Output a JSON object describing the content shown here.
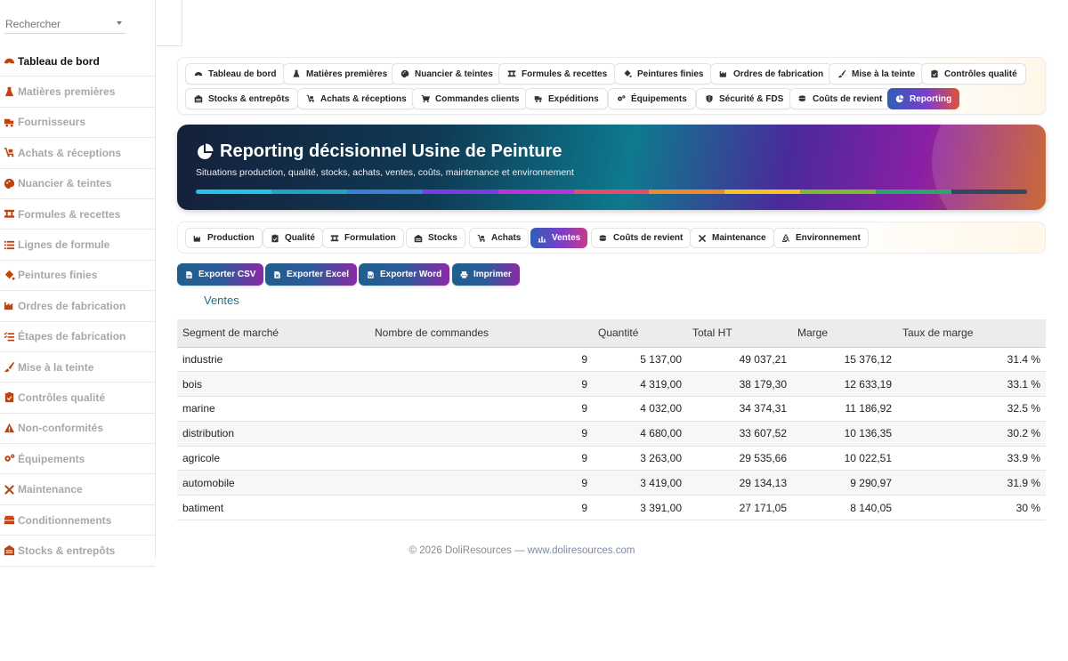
{
  "search": {
    "placeholder": "Rechercher"
  },
  "sidebar": {
    "items": [
      {
        "label": "Tableau de bord",
        "icon": "gauge-icon",
        "active": true
      },
      {
        "label": "Matières premières",
        "icon": "flask-icon"
      },
      {
        "label": "Fournisseurs",
        "icon": "truck-icon"
      },
      {
        "label": "Achats & réceptions",
        "icon": "cart-flatbed-icon"
      },
      {
        "label": "Nuancier & teintes",
        "icon": "palette-icon"
      },
      {
        "label": "Formules & recettes",
        "icon": "ruler-icon"
      },
      {
        "label": "Lignes de formule",
        "icon": "list-icon"
      },
      {
        "label": "Peintures finies",
        "icon": "paint-bucket-icon"
      },
      {
        "label": "Ordres de fabrication",
        "icon": "industry-icon"
      },
      {
        "label": "Étapes de fabrication",
        "icon": "list-check-icon"
      },
      {
        "label": "Mise à la teinte",
        "icon": "brush-icon"
      },
      {
        "label": "Contrôles qualité",
        "icon": "clipboard-check-icon"
      },
      {
        "label": "Non-conformités",
        "icon": "warning-icon"
      },
      {
        "label": "Équipements",
        "icon": "gears-icon"
      },
      {
        "label": "Maintenance",
        "icon": "tools-icon"
      },
      {
        "label": "Conditionnements",
        "icon": "box-icon"
      },
      {
        "label": "Stocks & entrepôts",
        "icon": "warehouse-icon"
      }
    ]
  },
  "nav": {
    "buttons": [
      {
        "label": "Tableau de bord",
        "icon": "gauge-icon"
      },
      {
        "label": "Matières premières",
        "icon": "flask-icon"
      },
      {
        "label": "Nuancier & teintes",
        "icon": "palette-icon"
      },
      {
        "label": "Formules & recettes",
        "icon": "ruler-icon"
      },
      {
        "label": "Peintures finies",
        "icon": "paint-bucket-icon"
      },
      {
        "label": "Ordres de fabrication",
        "icon": "industry-icon"
      },
      {
        "label": "Mise à la teinte",
        "icon": "brush-icon"
      },
      {
        "label": "Contrôles qualité",
        "icon": "clipboard-check-icon"
      },
      {
        "label": "Stocks & entrepôts",
        "icon": "warehouse-icon"
      },
      {
        "label": "Achats & réceptions",
        "icon": "cart-flatbed-icon"
      },
      {
        "label": "Commandes clients",
        "icon": "cart-icon"
      },
      {
        "label": "Expéditions",
        "icon": "truck-icon"
      },
      {
        "label": "Équipements",
        "icon": "gears-icon"
      },
      {
        "label": "Sécurité & FDS",
        "icon": "shield-icon"
      },
      {
        "label": "Coûts de revient",
        "icon": "coins-icon"
      },
      {
        "label": "Reporting",
        "icon": "pie-chart-icon",
        "active": true
      }
    ]
  },
  "banner": {
    "title": "Reporting décisionnel Usine de Peinture",
    "subtitle": "Situations production, qualité, stocks, achats, ventes, coûts, maintenance et environnement",
    "icon": "pie-chart-icon",
    "bar_colors": [
      "#22c3e6",
      "#1fa3c0",
      "#3b7fd0",
      "#7a3be0",
      "#c02fd8",
      "#e84a6a",
      "#f08a24",
      "#f5c31f",
      "#7dbb2a",
      "#27a86a",
      "#2f4a5e"
    ]
  },
  "tabs": [
    {
      "label": "Production",
      "icon": "industry-icon"
    },
    {
      "label": "Qualité",
      "icon": "clipboard-check-icon"
    },
    {
      "label": "Formulation",
      "icon": "ruler-icon"
    },
    {
      "label": "Stocks",
      "icon": "warehouse-icon"
    },
    {
      "label": "Achats",
      "icon": "cart-flatbed-icon"
    },
    {
      "label": "Ventes",
      "icon": "bar-chart-icon",
      "active": true
    },
    {
      "label": "Coûts de revient",
      "icon": "coins-icon"
    },
    {
      "label": "Maintenance",
      "icon": "tools-icon"
    },
    {
      "label": "Environnement",
      "icon": "recycle-icon"
    }
  ],
  "exports": [
    {
      "label": "Exporter CSV",
      "icon": "file-csv-icon"
    },
    {
      "label": "Exporter Excel",
      "icon": "file-excel-icon"
    },
    {
      "label": "Exporter Word",
      "icon": "file-word-icon"
    },
    {
      "label": "Imprimer",
      "icon": "print-icon"
    }
  ],
  "section": {
    "title": "Ventes"
  },
  "table": {
    "headers": [
      "Segment de marché",
      "Nombre de commandes",
      "Quantité",
      "Total HT",
      "Marge",
      "Taux de marge"
    ],
    "rows": [
      [
        "industrie",
        "9",
        "5 137,00",
        "49 037,21",
        "15 376,12",
        "31.4 %"
      ],
      [
        "bois",
        "9",
        "4 319,00",
        "38 179,30",
        "12 633,19",
        "33.1 %"
      ],
      [
        "marine",
        "9",
        "4 032,00",
        "34 374,31",
        "11 186,92",
        "32.5 %"
      ],
      [
        "distribution",
        "9",
        "4 680,00",
        "33 607,52",
        "10 136,35",
        "30.2 %"
      ],
      [
        "agricole",
        "9",
        "3 263,00",
        "29 535,66",
        "10 022,51",
        "33.9 %"
      ],
      [
        "automobile",
        "9",
        "3 419,00",
        "29 134,13",
        "9 290,97",
        "31.9 %"
      ],
      [
        "batiment",
        "9",
        "3 391,00",
        "27 171,05",
        "8 140,05",
        "30 %"
      ]
    ]
  },
  "footer": {
    "copyright": "© 2026 DoliResources — ",
    "link": "www.doliresources.com"
  },
  "colors": {
    "sidebar_icon": "#c2410c",
    "section_title": "#1f6f86",
    "export_start": "#1f5e8e",
    "export_end": "#8a2aa6"
  }
}
